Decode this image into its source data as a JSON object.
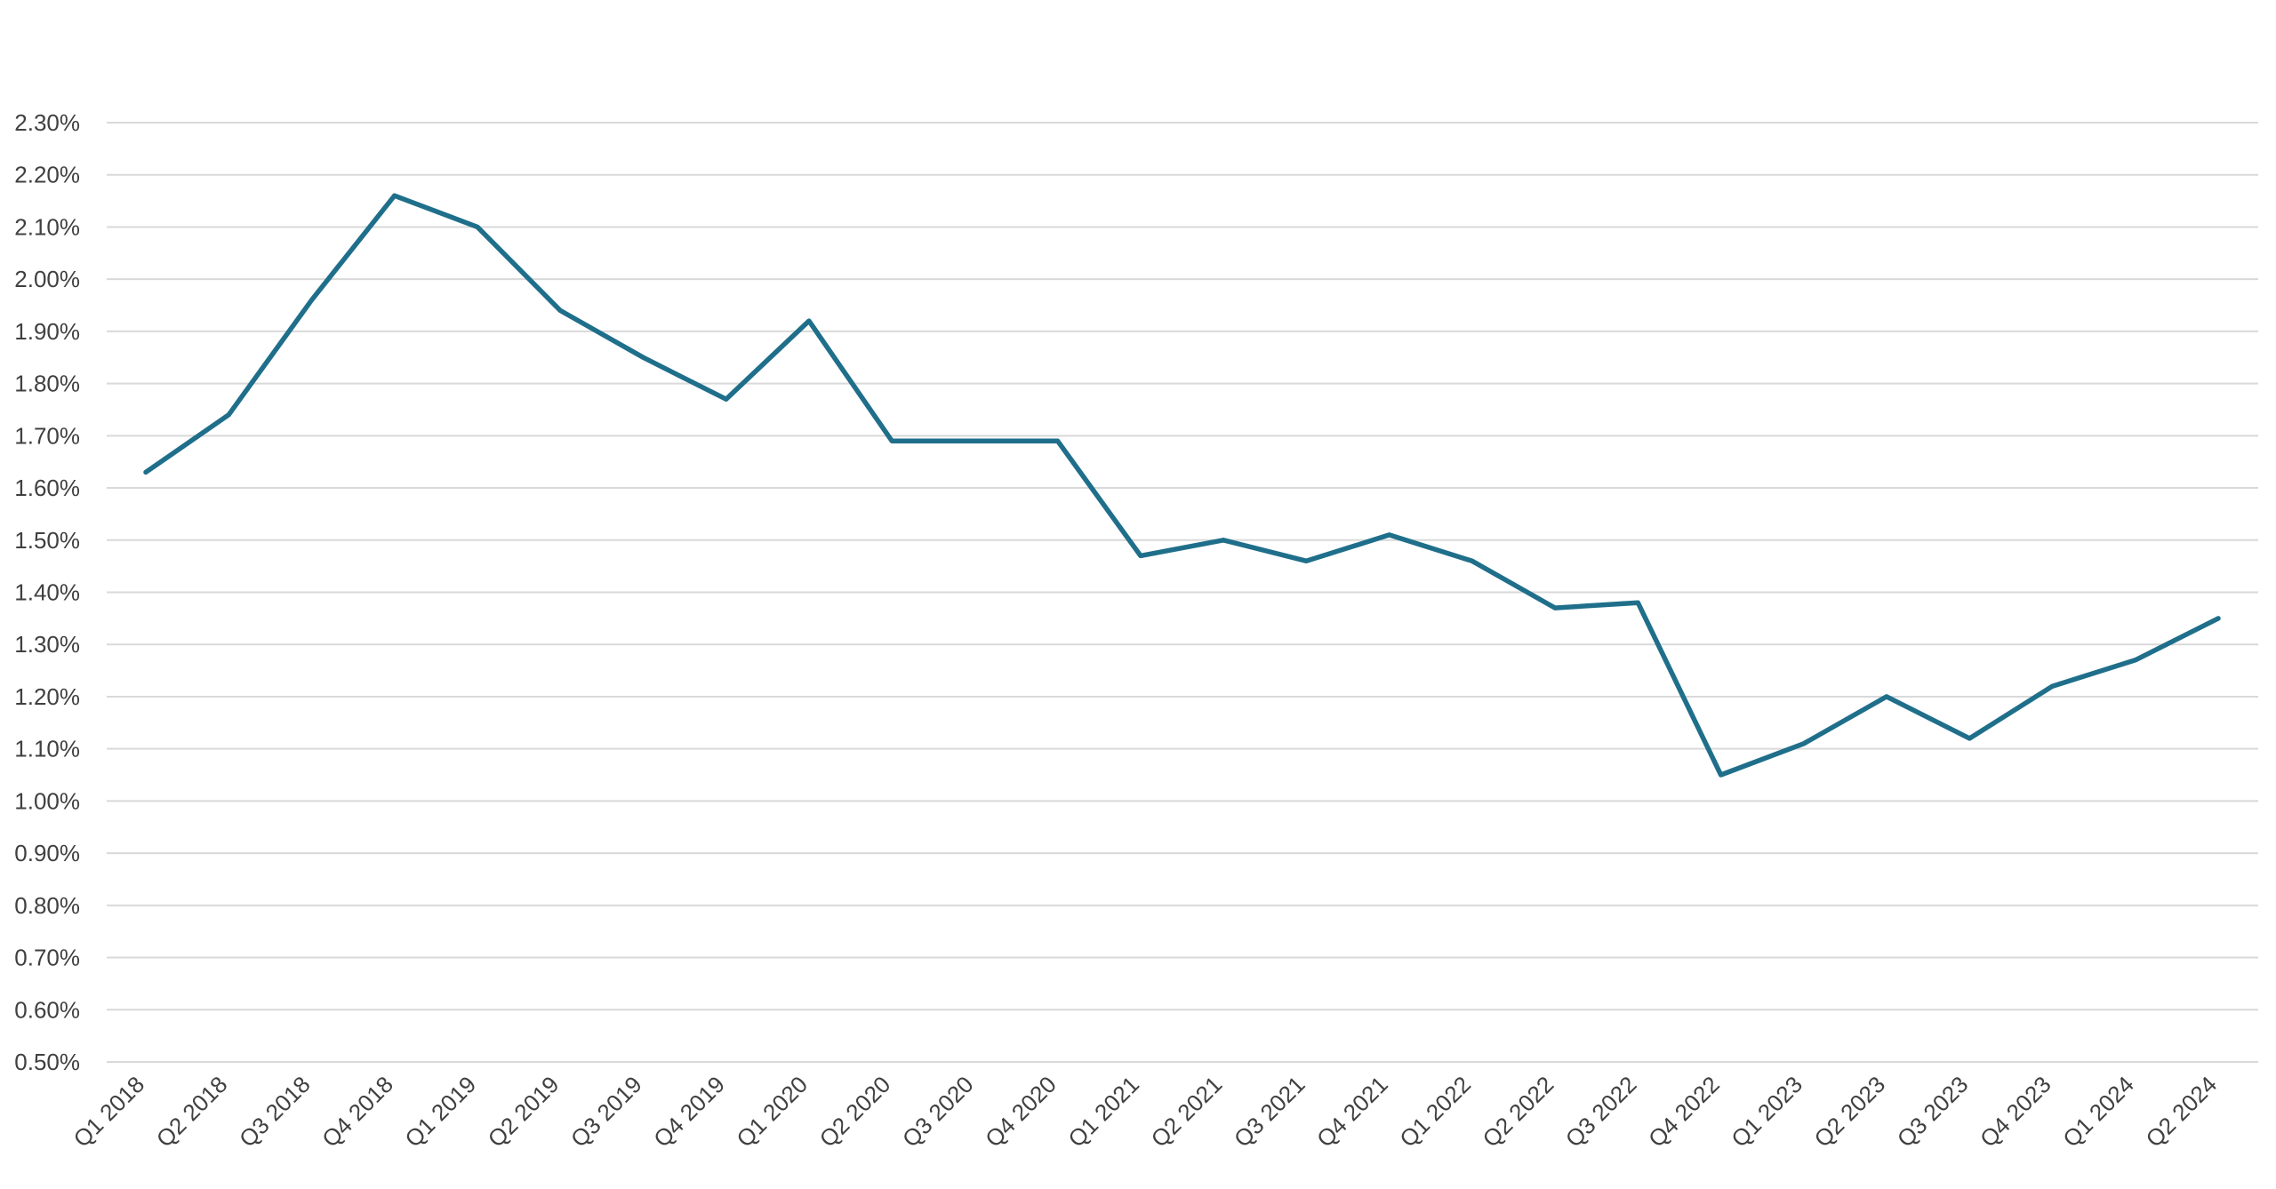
{
  "chart_data": {
    "type": "line",
    "title": "",
    "xlabel": "",
    "ylabel": "",
    "ylim": [
      0.5,
      2.3
    ],
    "y_tick_step": 0.1,
    "y_tick_labels": [
      "0.50%",
      "0.60%",
      "0.70%",
      "0.80%",
      "0.90%",
      "1.00%",
      "1.10%",
      "1.20%",
      "1.30%",
      "1.40%",
      "1.50%",
      "1.60%",
      "1.70%",
      "1.80%",
      "1.90%",
      "2.00%",
      "2.10%",
      "2.20%",
      "2.30%"
    ],
    "grid": true,
    "legend": "none",
    "categories": [
      "Q1 2018",
      "Q2 2018",
      "Q3 2018",
      "Q4 2018",
      "Q1 2019",
      "Q2 2019",
      "Q3 2019",
      "Q4 2019",
      "Q1 2020",
      "Q2 2020",
      "Q3 2020",
      "Q4 2020",
      "Q1 2021",
      "Q2 2021",
      "Q3 2021",
      "Q4 2021",
      "Q1 2022",
      "Q2 2022",
      "Q3 2022",
      "Q4 2022",
      "Q1 2023",
      "Q2 2023",
      "Q3 2023",
      "Q4 2023",
      "Q1 2024",
      "Q2 2024"
    ],
    "series": [
      {
        "color": "#1f6f8b",
        "values": [
          1.63,
          1.74,
          1.96,
          2.16,
          2.1,
          1.94,
          1.85,
          1.77,
          1.92,
          1.69,
          1.69,
          1.69,
          1.47,
          1.5,
          1.46,
          1.51,
          1.46,
          1.37,
          1.38,
          1.05,
          1.11,
          1.2,
          1.12,
          1.22,
          1.27,
          1.35
        ]
      }
    ]
  }
}
